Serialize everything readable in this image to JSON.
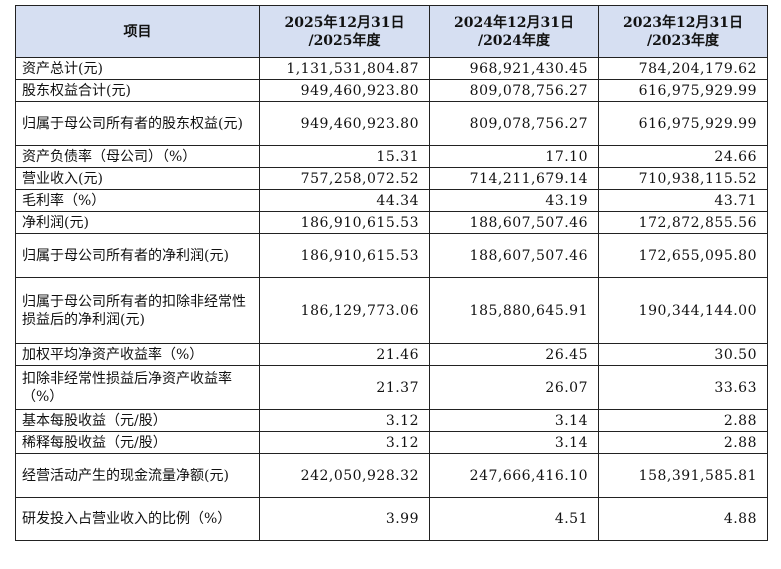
{
  "headers": [
    "项目",
    "2025年12月31日\n/2025年度",
    "2024年12月31日\n/2024年度",
    "2023年12月31日\n/2023年度"
  ],
  "rows": [
    {
      "label": "资产总计(元)",
      "v1": "1,131,531,804.87",
      "v2": "968,921,430.45",
      "v3": "784,204,179.62"
    },
    {
      "label": "股东权益合计(元)",
      "v1": "949,460,923.80",
      "v2": "809,078,756.27",
      "v3": "616,975,929.99"
    },
    {
      "label": "归属于母公司所有者的股东权益(元)",
      "v1": "949,460,923.80",
      "v2": "809,078,756.27",
      "v3": "616,975,929.99"
    },
    {
      "label": "资产负债率（母公司）（%）",
      "v1": "15.31",
      "v2": "17.10",
      "v3": "24.66"
    },
    {
      "label": "营业收入(元)",
      "v1": "757,258,072.52",
      "v2": "714,211,679.14",
      "v3": "710,938,115.52"
    },
    {
      "label": "毛利率（%）",
      "v1": "44.34",
      "v2": "43.19",
      "v3": "43.71"
    },
    {
      "label": "净利润(元)",
      "v1": "186,910,615.53",
      "v2": "188,607,507.46",
      "v3": "172,872,855.56"
    },
    {
      "label": "归属于母公司所有者的净利润(元)",
      "v1": "186,910,615.53",
      "v2": "188,607,507.46",
      "v3": "172,655,095.80"
    },
    {
      "label": "归属于母公司所有者的扣除非经常性损益后的净利润(元)",
      "v1": "186,129,773.06",
      "v2": "185,880,645.91",
      "v3": "190,344,144.00"
    },
    {
      "label": "加权平均净资产收益率（%）",
      "v1": "21.46",
      "v2": "26.45",
      "v3": "30.50"
    },
    {
      "label": "扣除非经常性损益后净资产收益率（%）",
      "v1": "21.37",
      "v2": "26.07",
      "v3": "33.63"
    },
    {
      "label": "基本每股收益（元/股）",
      "v1": "3.12",
      "v2": "3.14",
      "v3": "2.88"
    },
    {
      "label": "稀释每股收益（元/股）",
      "v1": "3.12",
      "v2": "3.14",
      "v3": "2.88"
    },
    {
      "label": "经营活动产生的现金流量净额(元)",
      "v1": "242,050,928.32",
      "v2": "247,666,416.10",
      "v3": "158,391,585.81"
    },
    {
      "label": "研发投入占营业收入的比例（%）",
      "v1": "3.99",
      "v2": "4.51",
      "v3": "4.88"
    }
  ]
}
